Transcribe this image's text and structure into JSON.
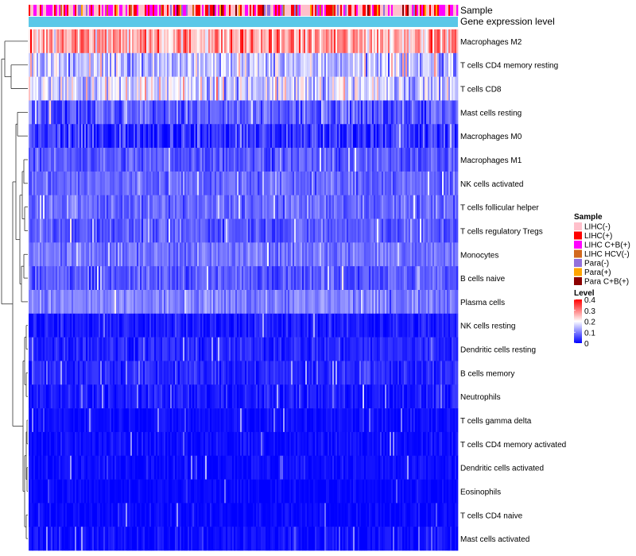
{
  "chart_data": {
    "type": "heatmap",
    "annotation_rows": [
      "Sample",
      "Gene expression level"
    ],
    "rows": [
      {
        "label": "Macrophages M2",
        "mean": 0.27,
        "spread": 0.1
      },
      {
        "label": "T cells CD4 memory resting",
        "mean": 0.15,
        "spread": 0.08
      },
      {
        "label": "T cells CD8",
        "mean": 0.17,
        "spread": 0.09
      },
      {
        "label": "Mast cells resting",
        "mean": 0.07,
        "spread": 0.06
      },
      {
        "label": "Macrophages M0",
        "mean": 0.04,
        "spread": 0.06
      },
      {
        "label": "Macrophages M1",
        "mean": 0.07,
        "spread": 0.04
      },
      {
        "label": "NK cells activated",
        "mean": 0.08,
        "spread": 0.04
      },
      {
        "label": "T cells follicular helper",
        "mean": 0.08,
        "spread": 0.04
      },
      {
        "label": "T cells regulatory  Tregs",
        "mean": 0.07,
        "spread": 0.04
      },
      {
        "label": "Monocytes",
        "mean": 0.09,
        "spread": 0.04
      },
      {
        "label": "B cells naive",
        "mean": 0.07,
        "spread": 0.04
      },
      {
        "label": "Plasma cells",
        "mean": 0.1,
        "spread": 0.04
      },
      {
        "label": "NK cells resting",
        "mean": 0.02,
        "spread": 0.03
      },
      {
        "label": "Dendritic cells resting",
        "mean": 0.03,
        "spread": 0.03
      },
      {
        "label": "B cells memory",
        "mean": 0.03,
        "spread": 0.03
      },
      {
        "label": "Neutrophils",
        "mean": 0.02,
        "spread": 0.03
      },
      {
        "label": "T cells gamma delta",
        "mean": 0.01,
        "spread": 0.02
      },
      {
        "label": "T cells CD4 memory activated",
        "mean": 0.01,
        "spread": 0.02
      },
      {
        "label": "Dendritic cells activated",
        "mean": 0.01,
        "spread": 0.02
      },
      {
        "label": "Eosinophils",
        "mean": 0.005,
        "spread": 0.015
      },
      {
        "label": "T cells CD4 naive",
        "mean": 0.005,
        "spread": 0.02
      },
      {
        "label": "Mast cells activated",
        "mean": 0.01,
        "spread": 0.03
      }
    ],
    "n_samples": 270,
    "sample_legend": {
      "title": "Sample",
      "entries": [
        {
          "label": "LIHC(-)",
          "color": "#ffc0cb"
        },
        {
          "label": "LIHC(+)",
          "color": "#ff0000"
        },
        {
          "label": "LIHC C+B(+)",
          "color": "#ff00ff"
        },
        {
          "label": "LIHC HCV(-)",
          "color": "#d2691e"
        },
        {
          "label": "Para(-)",
          "color": "#9370db"
        },
        {
          "label": "Para(+)",
          "color": "#ffa500"
        },
        {
          "label": "Para C+B(+)",
          "color": "#8b0000"
        }
      ]
    },
    "color_scale": {
      "title": "Level",
      "range": [
        0,
        0.4
      ],
      "ticks": [
        "0.4",
        "0.3",
        "0.2",
        "0.1",
        "0"
      ],
      "stops": [
        "#0000ff",
        "#ffffff",
        "#ff0000"
      ]
    },
    "gene_expression_color": "#5bc8e8"
  }
}
